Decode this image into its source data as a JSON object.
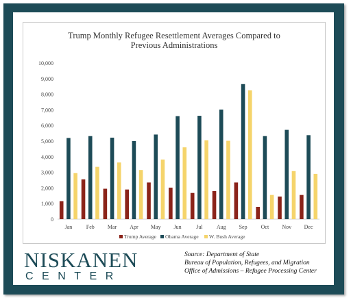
{
  "source": {
    "lines": [
      "Source: Department of State",
      "Bureau of Population, Refugees, and Migration",
      "Office of Admissions – Refugee Processing Center"
    ]
  },
  "logo": {
    "top": "NISKANEN",
    "bottom": "CENTER"
  },
  "colors": {
    "frame": "#1d4b57",
    "trump": "#8b2319",
    "obama": "#1d4b57",
    "bush": "#f5d46b"
  },
  "chart_data": {
    "type": "bar",
    "title": "Trump Monthly Refugee Resettlement Averages Compared to Previous Administrations",
    "title_lines": [
      "Trump Monthly Refugee Resettlement Averages Compared to",
      "Previous Administrations"
    ],
    "categories": [
      "Jan",
      "Feb",
      "Mar",
      "Apr",
      "May",
      "Jun",
      "Jul",
      "Aug",
      "Sep",
      "Oct",
      "Nov",
      "Dec"
    ],
    "series": [
      {
        "name": "Trump Average",
        "color": "#8b2319",
        "values": [
          1150,
          2550,
          1950,
          1900,
          2350,
          2020,
          1680,
          1800,
          2350,
          790,
          1450,
          1550
        ]
      },
      {
        "name": "Obama Average",
        "color": "#1d4b57",
        "values": [
          5200,
          5320,
          5220,
          5000,
          5420,
          6600,
          6620,
          7020,
          8650,
          5320,
          5720,
          5380
        ]
      },
      {
        "name": "W. Bush Average",
        "color": "#f5d46b",
        "values": [
          2950,
          3350,
          3630,
          3150,
          3820,
          4600,
          5050,
          5020,
          8250,
          1550,
          3080,
          2900
        ]
      }
    ],
    "ylim": [
      0,
      10000
    ],
    "yticks": [
      0,
      1000,
      2000,
      3000,
      4000,
      5000,
      6000,
      7000,
      8000,
      9000,
      10000
    ],
    "ytick_labels": [
      "0",
      "1,000",
      "2,000",
      "3,000",
      "4,000",
      "5,000",
      "6,000",
      "7,000",
      "8,000",
      "9,000",
      "10,000"
    ],
    "grid": false,
    "legend": "bottom"
  }
}
